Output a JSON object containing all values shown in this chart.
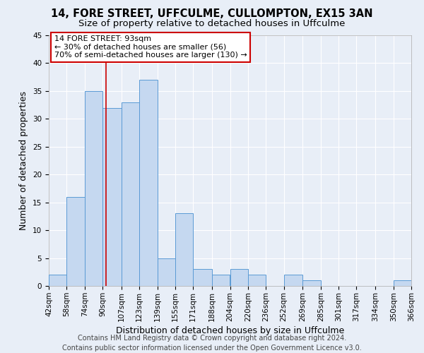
{
  "title": "14, FORE STREET, UFFCULME, CULLOMPTON, EX15 3AN",
  "subtitle": "Size of property relative to detached houses in Uffculme",
  "xlabel": "Distribution of detached houses by size in Uffculme",
  "ylabel": "Number of detached properties",
  "bar_color": "#c5d8f0",
  "bar_edge_color": "#5b9bd5",
  "background_color": "#e8eef7",
  "grid_color": "#ffffff",
  "bins": [
    42,
    58,
    74,
    90,
    107,
    123,
    139,
    155,
    171,
    188,
    204,
    220,
    236,
    252,
    269,
    285,
    301,
    317,
    334,
    350,
    366
  ],
  "counts": [
    2,
    16,
    35,
    32,
    33,
    37,
    5,
    13,
    3,
    2,
    3,
    2,
    0,
    2,
    1,
    0,
    0,
    0,
    0,
    1
  ],
  "tick_labels": [
    "42sqm",
    "58sqm",
    "74sqm",
    "90sqm",
    "107sqm",
    "123sqm",
    "139sqm",
    "155sqm",
    "171sqm",
    "188sqm",
    "204sqm",
    "220sqm",
    "236sqm",
    "252sqm",
    "269sqm",
    "285sqm",
    "301sqm",
    "317sqm",
    "334sqm",
    "350sqm",
    "366sqm"
  ],
  "vline_x": 93,
  "vline_color": "#cc0000",
  "ylim": [
    0,
    45
  ],
  "yticks": [
    0,
    5,
    10,
    15,
    20,
    25,
    30,
    35,
    40,
    45
  ],
  "annotation_title": "14 FORE STREET: 93sqm",
  "annotation_line1": "← 30% of detached houses are smaller (56)",
  "annotation_line2": "70% of semi-detached houses are larger (130) →",
  "annotation_box_color": "#ffffff",
  "annotation_box_edge_color": "#cc0000",
  "footer_line1": "Contains HM Land Registry data © Crown copyright and database right 2024.",
  "footer_line2": "Contains public sector information licensed under the Open Government Licence v3.0.",
  "title_fontsize": 10.5,
  "subtitle_fontsize": 9.5,
  "axis_label_fontsize": 9,
  "tick_fontsize": 7.5,
  "annotation_fontsize": 8,
  "footer_fontsize": 7
}
